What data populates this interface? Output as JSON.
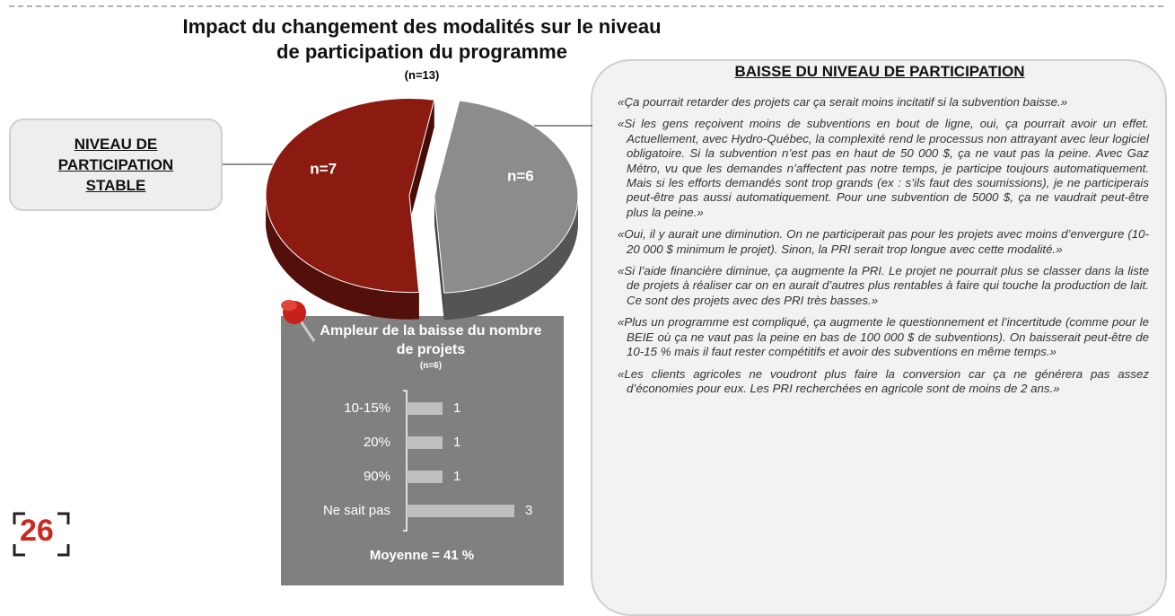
{
  "page_number": "26",
  "chart_data": [
    {
      "type": "pie",
      "title": "Impact du changement des modalités sur le niveau de participation du programme",
      "subtitle": "(n=13)",
      "categories": [
        "NIVEAU DE PARTICIPATION STABLE",
        "BAISSE DU NIVEAU DE PARTICIPATION"
      ],
      "values": [
        7,
        6
      ],
      "value_labels": [
        "n=7",
        "n=6"
      ],
      "colors": [
        "#8b1a10",
        "#8c8c8c"
      ]
    },
    {
      "type": "bar",
      "title": "Ampleur de la baisse du nombre de projets",
      "subtitle": "(n=6)",
      "categories": [
        "10-15%",
        "20%",
        "90%",
        "Ne sait pas"
      ],
      "values": [
        1,
        1,
        1,
        3
      ],
      "color": "#bfbfbf",
      "note": "Moyenne = 41 %"
    }
  ],
  "quotes": [
    "«Ça pourrait retarder des projets car ça serait moins incitatif si la subvention baisse.»",
    "«Si les gens reçoivent moins de subventions en bout de ligne, oui, ça pourrait avoir un effet. Actuellement, avec Hydro-Québec, la complexité rend le processus non attrayant avec leur logiciel obligatoire. Si la subvention n’est pas en haut de 50 000 $, ça ne vaut pas la peine. Avec Gaz Métro, vu que les demandes n’affectent pas notre temps, je participe toujours automatiquement. Mais si les efforts demandés sont trop grands (ex : s’ils faut des soumissions), je ne participerais peut-être pas aussi automatiquement. Pour une subvention de 5000 $, ça ne vaudrait peut-être plus la peine.»",
    "«Oui, il y aurait une diminution. On ne participerait pas pour les projets avec moins d’envergure (10-20 000 $ minimum le projet). Sinon, la PRI serait trop longue avec cette modalité.»",
    "«Si l’aide financière diminue, ça augmente la PRI. Le projet ne pourrait plus se classer dans la liste de projets à réaliser car on en aurait d’autres plus rentables à faire qui touche la production de lait. Ce sont des projets avec des PRI très basses.»",
    "«Plus un programme est compliqué, ça augmente le questionnement et l’incertitude (comme pour le BEIE où ça ne vaut pas la peine en bas de 100 000 $ de subventions). On baisserait peut-être de 10-15 % mais il faut rester compétitifs et avoir des subventions en même temps.»",
    "«Les clients agricoles ne voudront plus faire la conversion car ça ne générera pas assez d’économies pour eux. Les PRI recherchées en agricole sont de moins de 2 ans.»"
  ]
}
